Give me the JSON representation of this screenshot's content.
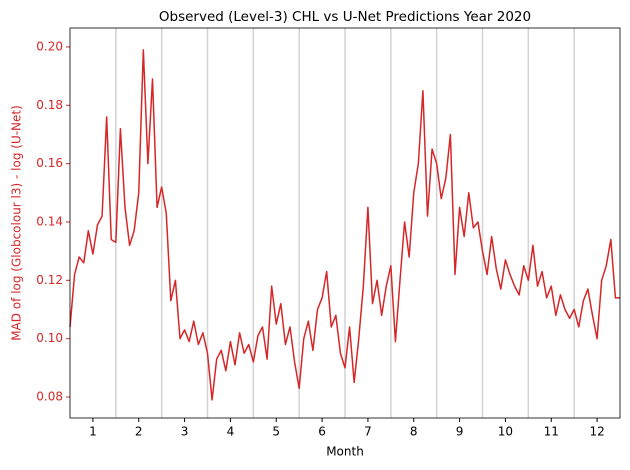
{
  "chart_data": {
    "type": "line",
    "title": "Observed (Level-3) CHL vs U-Net Predictions Year 2020",
    "x_label": "Month",
    "y_label": "MAD of log (Globcolour l3) - log (U-Net)",
    "x": [
      0.5,
      0.6,
      0.7,
      0.8,
      0.9,
      1.0,
      1.1,
      1.2,
      1.3,
      1.4,
      1.5,
      1.6,
      1.7,
      1.8,
      1.9,
      2.0,
      2.1,
      2.2,
      2.3,
      2.4,
      2.5,
      2.6,
      2.7,
      2.8,
      2.9,
      3.0,
      3.1,
      3.2,
      3.3,
      3.4,
      3.5,
      3.6,
      3.7,
      3.8,
      3.9,
      4.0,
      4.1,
      4.2,
      4.3,
      4.4,
      4.5,
      4.6,
      4.7,
      4.8,
      4.9,
      5.0,
      5.1,
      5.2,
      5.3,
      5.4,
      5.5,
      5.6,
      5.7,
      5.8,
      5.9,
      6.0,
      6.1,
      6.2,
      6.3,
      6.4,
      6.5,
      6.6,
      6.7,
      6.8,
      6.9,
      7.0,
      7.1,
      7.2,
      7.3,
      7.4,
      7.5,
      7.6,
      7.7,
      7.8,
      7.9,
      8.0,
      8.1,
      8.2,
      8.3,
      8.4,
      8.5,
      8.6,
      8.7,
      8.8,
      8.9,
      9.0,
      9.1,
      9.2,
      9.3,
      9.4,
      9.5,
      9.6,
      9.7,
      9.8,
      9.9,
      10.0,
      10.1,
      10.2,
      10.3,
      10.4,
      10.5,
      10.6,
      10.7,
      10.8,
      10.9,
      11.0,
      11.1,
      11.2,
      11.3,
      11.4,
      11.5,
      11.6,
      11.7,
      11.8,
      11.9,
      12.0,
      12.1,
      12.2,
      12.3,
      12.4,
      12.5
    ],
    "series": [
      {
        "name": "MAD",
        "color": "#d62728",
        "values": [
          0.104,
          0.122,
          0.128,
          0.126,
          0.137,
          0.129,
          0.139,
          0.142,
          0.176,
          0.134,
          0.133,
          0.172,
          0.145,
          0.132,
          0.137,
          0.15,
          0.199,
          0.16,
          0.189,
          0.145,
          0.152,
          0.143,
          0.113,
          0.12,
          0.1,
          0.103,
          0.099,
          0.106,
          0.098,
          0.102,
          0.095,
          0.079,
          0.093,
          0.096,
          0.089,
          0.099,
          0.091,
          0.102,
          0.095,
          0.098,
          0.092,
          0.101,
          0.104,
          0.093,
          0.118,
          0.105,
          0.112,
          0.098,
          0.104,
          0.092,
          0.083,
          0.1,
          0.106,
          0.096,
          0.11,
          0.114,
          0.123,
          0.104,
          0.108,
          0.095,
          0.09,
          0.104,
          0.085,
          0.1,
          0.118,
          0.145,
          0.112,
          0.12,
          0.108,
          0.118,
          0.125,
          0.099,
          0.12,
          0.14,
          0.128,
          0.15,
          0.16,
          0.185,
          0.142,
          0.165,
          0.16,
          0.148,
          0.155,
          0.17,
          0.122,
          0.145,
          0.135,
          0.15,
          0.138,
          0.14,
          0.13,
          0.122,
          0.135,
          0.124,
          0.117,
          0.127,
          0.122,
          0.118,
          0.115,
          0.125,
          0.12,
          0.132,
          0.118,
          0.123,
          0.114,
          0.118,
          0.108,
          0.115,
          0.11,
          0.107,
          0.11,
          0.104,
          0.113,
          0.117,
          0.108,
          0.1,
          0.12,
          0.125,
          0.134,
          0.114,
          0.114
        ]
      }
    ],
    "xlim": [
      0.5,
      12.5
    ],
    "xticks": [
      1,
      2,
      3,
      4,
      5,
      6,
      7,
      8,
      9,
      10,
      11,
      12
    ],
    "ylim": [
      0.0728,
      0.2065
    ],
    "yticks": [
      0.08,
      {
        "value": 0.1,
        "label": "0.10"
      },
      0.12,
      0.14,
      0.16,
      0.18,
      {
        "value": 0.2,
        "label": "0.20"
      }
    ],
    "vlines": [
      1.5,
      2.5,
      3.5,
      4.5,
      5.5,
      6.5,
      7.5,
      8.5,
      9.5,
      10.5,
      11.5
    ],
    "vline_color": "#d3d3d3",
    "y_axis_color": "#d62728"
  }
}
